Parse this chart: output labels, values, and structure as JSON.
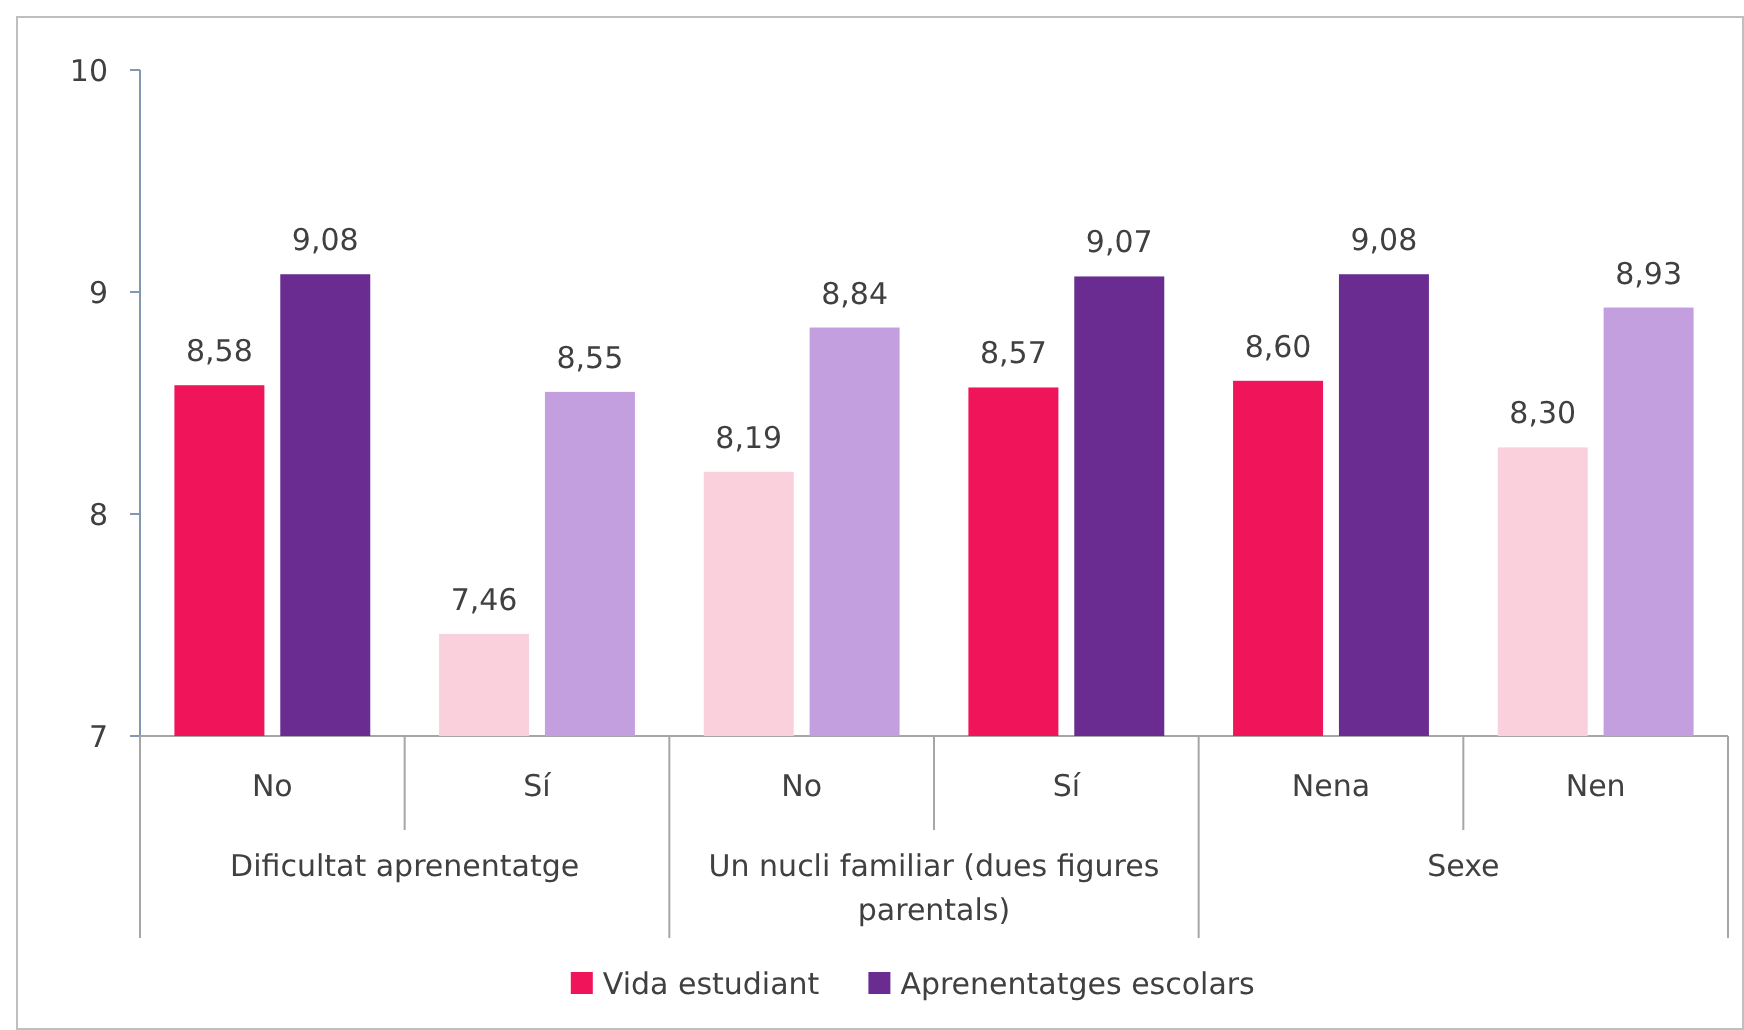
{
  "chart_data": {
    "type": "bar",
    "categories": [
      "No",
      "Sí",
      "No",
      "Sí",
      "Nena",
      "Nen"
    ],
    "series": [
      {
        "name": "Vida estudiant",
        "color": "#f0145a",
        "colors": [
          "#f0145a",
          "#fad0dc",
          "#fad0dc",
          "#f0145a",
          "#f0145a",
          "#fad0dc"
        ],
        "values": [
          8.58,
          7.46,
          8.19,
          8.57,
          8.6,
          8.3
        ],
        "value_labels": [
          "8,58",
          "7,46",
          "8,19",
          "8,57",
          "8,60",
          "8,30"
        ]
      },
      {
        "name": "Aprenentatges escolars",
        "color": "#6a2c91",
        "colors": [
          "#6a2c91",
          "#c49fe0",
          "#c49fe0",
          "#6a2c91",
          "#6a2c91",
          "#c49fe0"
        ],
        "values": [
          9.08,
          8.55,
          8.84,
          9.07,
          9.08,
          8.93
        ],
        "value_labels": [
          "9,08",
          "8,55",
          "8,84",
          "9,07",
          "9,08",
          "8,93"
        ]
      }
    ],
    "annotations": [
      "Dificultat aprenentatge",
      "Un nucli familiar (dues figures parentals)",
      "Sexe"
    ],
    "ylim": [
      7,
      10
    ],
    "yticks": [
      7,
      8,
      9,
      10
    ],
    "grid": false,
    "legend": "bottom"
  }
}
